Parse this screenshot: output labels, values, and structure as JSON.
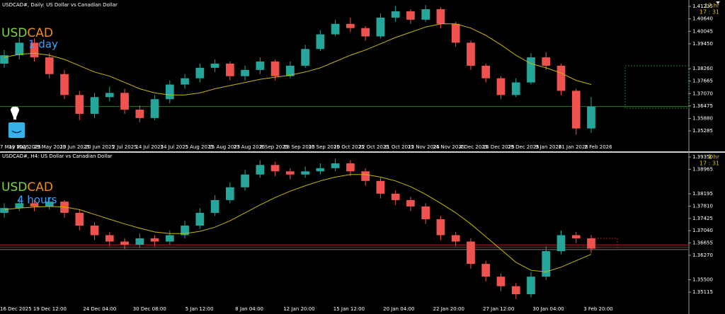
{
  "chart_data": [
    {
      "type": "candlestick",
      "title": "USDCAD#, Daily:  US Dollar vs Canadian Dollar",
      "symbol_base": "USD",
      "symbol_quote": "CAD",
      "timeframe": "1 day",
      "timer": [
        "17 hr",
        "17 : 31"
      ],
      "ylim": [
        1.3478,
        1.4144
      ],
      "yticks": [
        {
          "value": 1.41235,
          "label": "1.41235"
        },
        {
          "value": 1.4064,
          "label": "1.40640"
        },
        {
          "value": 1.40045,
          "label": "1.40045"
        },
        {
          "value": 1.3945,
          "label": "1.39450"
        },
        {
          "value": 1.3826,
          "label": "1.38260"
        },
        {
          "value": 1.37665,
          "label": "1.37665"
        },
        {
          "value": 1.3707,
          "label": "1.37070"
        },
        {
          "value": 1.36475,
          "label": "1.36475"
        },
        {
          "value": 1.3588,
          "label": "1.35880"
        },
        {
          "value": 1.35285,
          "label": "1.35285"
        }
      ],
      "xlabels": [
        "7 May 2025",
        "19 May 2025",
        "29 May 2025",
        "10 Jun 2025",
        "20 Jun 2025",
        "2 Jul 2025",
        "14 Jul 2025",
        "24 Jul 2025",
        "5 Aug 2025",
        "15 Aug 2025",
        "27 Aug 2025",
        "8 Sep 2025",
        "18 Sep 2025",
        "30 Sep 2025",
        "10 Oct 2025",
        "22 Oct 2025",
        "31 Oct 2025",
        "12 Nov 2025",
        "24 Nov 2025",
        "4 Dec 2025",
        "16 Dec 2025",
        "29 Dec 2025",
        "9 Jan 2026",
        "21 Jan 2026",
        "2 Feb 2026"
      ],
      "bull_color": "#26a69a",
      "bear_color": "#ef5350",
      "candles": [
        [
          1.385,
          1.3915,
          1.383,
          1.389
        ],
        [
          1.389,
          1.3975,
          1.387,
          1.395
        ],
        [
          1.395,
          1.397,
          1.386,
          1.388
        ],
        [
          1.388,
          1.39,
          1.378,
          1.38
        ],
        [
          1.38,
          1.382,
          1.368,
          1.37
        ],
        [
          1.37,
          1.372,
          1.358,
          1.361
        ],
        [
          1.361,
          1.371,
          1.359,
          1.369
        ],
        [
          1.369,
          1.374,
          1.367,
          1.371
        ],
        [
          1.371,
          1.373,
          1.361,
          1.363
        ],
        [
          1.363,
          1.365,
          1.357,
          1.359
        ],
        [
          1.359,
          1.37,
          1.358,
          1.368
        ],
        [
          1.368,
          1.377,
          1.366,
          1.375
        ],
        [
          1.375,
          1.38,
          1.373,
          1.378
        ],
        [
          1.378,
          1.385,
          1.376,
          1.383
        ],
        [
          1.383,
          1.387,
          1.381,
          1.385
        ],
        [
          1.385,
          1.386,
          1.377,
          1.379
        ],
        [
          1.379,
          1.384,
          1.377,
          1.382
        ],
        [
          1.382,
          1.388,
          1.38,
          1.386
        ],
        [
          1.386,
          1.387,
          1.377,
          1.379
        ],
        [
          1.379,
          1.386,
          1.378,
          1.384
        ],
        [
          1.384,
          1.394,
          1.383,
          1.392
        ],
        [
          1.392,
          1.401,
          1.391,
          1.399
        ],
        [
          1.399,
          1.406,
          1.398,
          1.404
        ],
        [
          1.404,
          1.407,
          1.4,
          1.402
        ],
        [
          1.402,
          1.403,
          1.396,
          1.398
        ],
        [
          1.398,
          1.409,
          1.397,
          1.407
        ],
        [
          1.407,
          1.4125,
          1.405,
          1.41
        ],
        [
          1.41,
          1.411,
          1.404,
          1.406
        ],
        [
          1.406,
          1.413,
          1.405,
          1.411
        ],
        [
          1.411,
          1.412,
          1.402,
          1.404
        ],
        [
          1.404,
          1.405,
          1.393,
          1.395
        ],
        [
          1.395,
          1.396,
          1.382,
          1.384
        ],
        [
          1.384,
          1.385,
          1.376,
          1.378
        ],
        [
          1.378,
          1.379,
          1.368,
          1.37
        ],
        [
          1.37,
          1.378,
          1.369,
          1.376
        ],
        [
          1.376,
          1.39,
          1.375,
          1.388
        ],
        [
          1.388,
          1.3905,
          1.382,
          1.384
        ],
        [
          1.384,
          1.385,
          1.37,
          1.372
        ],
        [
          1.372,
          1.373,
          1.351,
          1.354
        ],
        [
          1.354,
          1.369,
          1.352,
          1.3645
        ]
      ],
      "ma": {
        "color": "#c9b800",
        "values": [
          1.388,
          1.3895,
          1.39,
          1.389,
          1.387,
          1.384,
          1.381,
          1.379,
          1.376,
          1.373,
          1.371,
          1.37,
          1.37,
          1.371,
          1.373,
          1.3745,
          1.376,
          1.3775,
          1.3785,
          1.3795,
          1.381,
          1.383,
          1.386,
          1.389,
          1.3915,
          1.3945,
          1.3975,
          1.4,
          1.4025,
          1.404,
          1.404,
          1.402,
          1.3985,
          1.394,
          1.389,
          1.385,
          1.383,
          1.3805,
          1.377,
          1.375
        ]
      },
      "levels": [
        {
          "value": 1.3645,
          "color": "#1f7a1f"
        }
      ]
    },
    {
      "type": "candlestick",
      "title": "USDCAD#, H4:  US Dollar vs Canadian Dollar",
      "symbol_base": "USD",
      "symbol_quote": "CAD",
      "timeframe": "4 hours",
      "timer": [
        "1 hr",
        "17 : 31"
      ],
      "ylim": [
        1.3474,
        1.3946
      ],
      "yticks": [
        {
          "value": 1.3935,
          "label": "1.39350"
        },
        {
          "value": 1.38965,
          "label": "1.38965"
        },
        {
          "value": 1.38195,
          "label": "1.38195"
        },
        {
          "value": 1.3781,
          "label": "1.37810"
        },
        {
          "value": 1.37425,
          "label": "1.37425"
        },
        {
          "value": 1.3704,
          "label": "1.37040"
        },
        {
          "value": 1.36655,
          "label": "1.36655"
        },
        {
          "value": 1.3627,
          "label": "1.36270"
        },
        {
          "value": 1.355,
          "label": "1.35500"
        },
        {
          "value": 1.35115,
          "label": "1.35115"
        }
      ],
      "xlabels": [
        "16 Dec 2025",
        "19 Dec 12:00",
        "24 Dec 04:00",
        "30 Dec 08:00",
        "5 Jan 12:00",
        "8 Jan 04:00",
        "12 Jan 20:00",
        "15 Jan 12:00",
        "20 Jan 04:00",
        "22 Jan 20:00",
        "27 Jan 12:00",
        "30 Jan 04:00",
        "3 Feb 20:00"
      ],
      "bull_color": "#26a69a",
      "bear_color": "#ef5350",
      "candles": [
        [
          1.376,
          1.379,
          1.3745,
          1.3775
        ],
        [
          1.3775,
          1.3805,
          1.3765,
          1.379
        ],
        [
          1.379,
          1.38,
          1.3765,
          1.378
        ],
        [
          1.378,
          1.381,
          1.377,
          1.3795
        ],
        [
          1.3795,
          1.38,
          1.3745,
          1.376
        ],
        [
          1.376,
          1.377,
          1.3705,
          1.372
        ],
        [
          1.372,
          1.373,
          1.3675,
          1.369
        ],
        [
          1.369,
          1.37,
          1.3655,
          1.367
        ],
        [
          1.367,
          1.368,
          1.3645,
          1.366
        ],
        [
          1.366,
          1.3695,
          1.365,
          1.368
        ],
        [
          1.368,
          1.369,
          1.3655,
          1.367
        ],
        [
          1.367,
          1.3705,
          1.366,
          1.369
        ],
        [
          1.369,
          1.3735,
          1.368,
          1.372
        ],
        [
          1.372,
          1.3775,
          1.371,
          1.376
        ],
        [
          1.376,
          1.3815,
          1.375,
          1.38
        ],
        [
          1.38,
          1.3855,
          1.379,
          1.384
        ],
        [
          1.384,
          1.3895,
          1.383,
          1.388
        ],
        [
          1.388,
          1.3925,
          1.387,
          1.391
        ],
        [
          1.391,
          1.392,
          1.3875,
          1.389
        ],
        [
          1.389,
          1.39,
          1.3865,
          1.388
        ],
        [
          1.388,
          1.3905,
          1.387,
          1.389
        ],
        [
          1.389,
          1.3915,
          1.388,
          1.39
        ],
        [
          1.39,
          1.393,
          1.389,
          1.3915
        ],
        [
          1.3915,
          1.3925,
          1.3875,
          1.389
        ],
        [
          1.389,
          1.39,
          1.3845,
          1.386
        ],
        [
          1.386,
          1.387,
          1.3805,
          1.382
        ],
        [
          1.382,
          1.383,
          1.3785,
          1.38
        ],
        [
          1.38,
          1.381,
          1.3765,
          1.378
        ],
        [
          1.378,
          1.379,
          1.3725,
          1.374
        ],
        [
          1.374,
          1.375,
          1.3675,
          1.369
        ],
        [
          1.369,
          1.37,
          1.3655,
          1.367
        ],
        [
          1.367,
          1.368,
          1.3585,
          1.36
        ],
        [
          1.36,
          1.361,
          1.3545,
          1.356
        ],
        [
          1.356,
          1.357,
          1.3515,
          1.353
        ],
        [
          1.353,
          1.354,
          1.349,
          1.3505
        ],
        [
          1.3505,
          1.3575,
          1.3495,
          1.356
        ],
        [
          1.356,
          1.3655,
          1.355,
          1.364
        ],
        [
          1.364,
          1.3705,
          1.363,
          1.369
        ],
        [
          1.369,
          1.37,
          1.3665,
          1.368
        ],
        [
          1.368,
          1.369,
          1.3635,
          1.3648
        ]
      ],
      "ma": {
        "color": "#c9b800",
        "values": [
          1.377,
          1.3775,
          1.3778,
          1.378,
          1.3778,
          1.377,
          1.3755,
          1.374,
          1.3725,
          1.3712,
          1.37,
          1.3695,
          1.3695,
          1.3702,
          1.3715,
          1.3735,
          1.376,
          1.3785,
          1.3808,
          1.3828,
          1.3845,
          1.386,
          1.3872,
          1.388,
          1.388,
          1.3872,
          1.386,
          1.3842,
          1.3818,
          1.379,
          1.376,
          1.3725,
          1.3685,
          1.3645,
          1.3605,
          1.358,
          1.3575,
          1.359,
          1.361,
          1.363
        ]
      },
      "levels": [
        {
          "value": 1.366,
          "color": "#b02020"
        },
        {
          "value": 1.3652,
          "color": "#b02020"
        },
        {
          "value": 1.3645,
          "color": "#777777"
        }
      ]
    }
  ]
}
